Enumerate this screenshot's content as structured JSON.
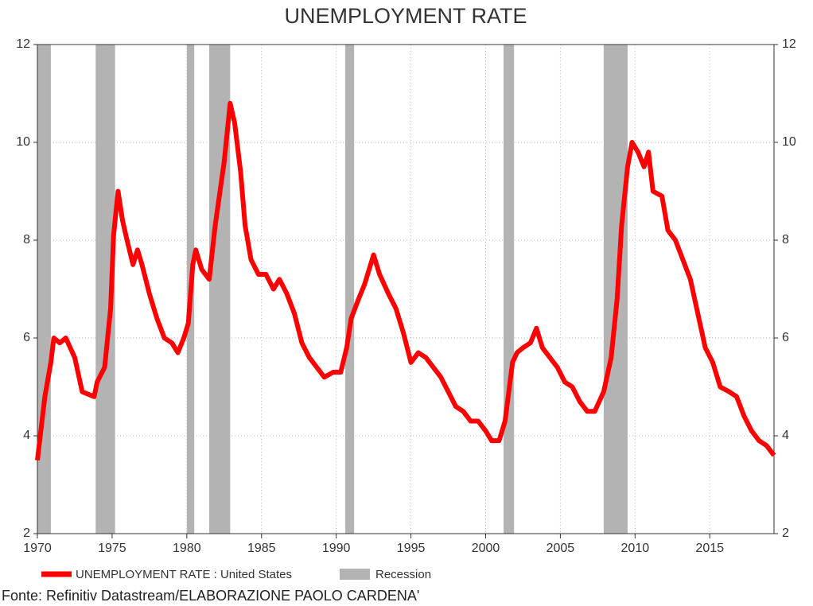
{
  "chart_data": {
    "type": "line",
    "title": "UNEMPLOYMENT RATE",
    "xlim": [
      1970,
      2019.3
    ],
    "xticks": [
      1970,
      1975,
      1980,
      1985,
      1990,
      1995,
      2000,
      2005,
      2010,
      2015
    ],
    "ylim": [
      2,
      12
    ],
    "yticks": [
      2,
      4,
      6,
      8,
      10,
      12
    ],
    "y2lim": [
      2,
      12
    ],
    "y2ticks": [
      2,
      4,
      6,
      8,
      10,
      12
    ],
    "grid": true,
    "x": [
      1970.0,
      1970.5,
      1970.9,
      1971.1,
      1971.5,
      1971.9,
      1972.5,
      1973.0,
      1973.8,
      1974.0,
      1974.5,
      1974.9,
      1975.1,
      1975.4,
      1975.7,
      1976.0,
      1976.4,
      1976.7,
      1977.0,
      1977.5,
      1978.0,
      1978.5,
      1979.0,
      1979.4,
      1979.8,
      1980.1,
      1980.4,
      1980.6,
      1981.0,
      1981.5,
      1981.9,
      1982.5,
      1982.9,
      1983.2,
      1983.6,
      1983.9,
      1984.3,
      1984.8,
      1985.3,
      1985.8,
      1986.2,
      1986.7,
      1987.2,
      1987.7,
      1988.2,
      1988.7,
      1989.2,
      1989.8,
      1990.3,
      1990.7,
      1991.0,
      1991.5,
      1991.9,
      1992.5,
      1992.9,
      1993.5,
      1994.0,
      1994.5,
      1995.0,
      1995.5,
      1996.0,
      1996.5,
      1997.0,
      1997.5,
      1998.0,
      1998.5,
      1999.0,
      1999.5,
      2000.0,
      2000.4,
      2000.9,
      2001.3,
      2001.8,
      2002.1,
      2002.5,
      2003.0,
      2003.4,
      2003.8,
      2004.3,
      2004.8,
      2005.3,
      2005.8,
      2006.3,
      2006.8,
      2007.3,
      2007.9,
      2008.4,
      2008.8,
      2009.1,
      2009.5,
      2009.8,
      2010.2,
      2010.6,
      2010.9,
      2011.2,
      2011.8,
      2012.2,
      2012.7,
      2013.2,
      2013.7,
      2014.2,
      2014.7,
      2015.2,
      2015.7,
      2016.3,
      2016.8,
      2017.3,
      2017.8,
      2018.3,
      2018.8,
      2019.3
    ],
    "series": [
      {
        "name": "UNEMPLOYMENT RATE : United States",
        "color": "#ff0000",
        "values": [
          3.5,
          4.8,
          5.5,
          6.0,
          5.9,
          6.0,
          5.6,
          4.9,
          4.8,
          5.1,
          5.4,
          6.6,
          8.1,
          9.0,
          8.4,
          8.0,
          7.5,
          7.8,
          7.5,
          6.9,
          6.4,
          6.0,
          5.9,
          5.7,
          6.0,
          6.3,
          7.5,
          7.8,
          7.4,
          7.2,
          8.3,
          9.6,
          10.8,
          10.4,
          9.4,
          8.3,
          7.6,
          7.3,
          7.3,
          7.0,
          7.2,
          6.9,
          6.5,
          5.9,
          5.6,
          5.4,
          5.2,
          5.3,
          5.3,
          5.8,
          6.4,
          6.8,
          7.1,
          7.7,
          7.3,
          6.9,
          6.6,
          6.1,
          5.5,
          5.7,
          5.6,
          5.4,
          5.2,
          4.9,
          4.6,
          4.5,
          4.3,
          4.3,
          4.1,
          3.9,
          3.9,
          4.3,
          5.5,
          5.7,
          5.8,
          5.9,
          6.2,
          5.8,
          5.6,
          5.4,
          5.1,
          5.0,
          4.7,
          4.5,
          4.5,
          4.9,
          5.6,
          6.8,
          8.3,
          9.5,
          10.0,
          9.8,
          9.5,
          9.8,
          9.0,
          8.9,
          8.2,
          8.0,
          7.6,
          7.2,
          6.5,
          5.8,
          5.5,
          5.0,
          4.9,
          4.8,
          4.4,
          4.1,
          3.9,
          3.8,
          3.6
        ]
      }
    ],
    "recession": {
      "name": "Recession",
      "color": "#b3b3b3",
      "periods": [
        [
          1970.0,
          1970.9
        ],
        [
          1973.9,
          1975.2
        ],
        [
          1980.0,
          1980.5
        ],
        [
          1981.5,
          1982.9
        ],
        [
          1990.6,
          1991.2
        ],
        [
          2001.2,
          2001.9
        ],
        [
          2007.9,
          2009.5
        ]
      ]
    },
    "source": "Fonte: Refinitiv Datastream/ELABORAZIONE PAOLO CARDENA'"
  }
}
